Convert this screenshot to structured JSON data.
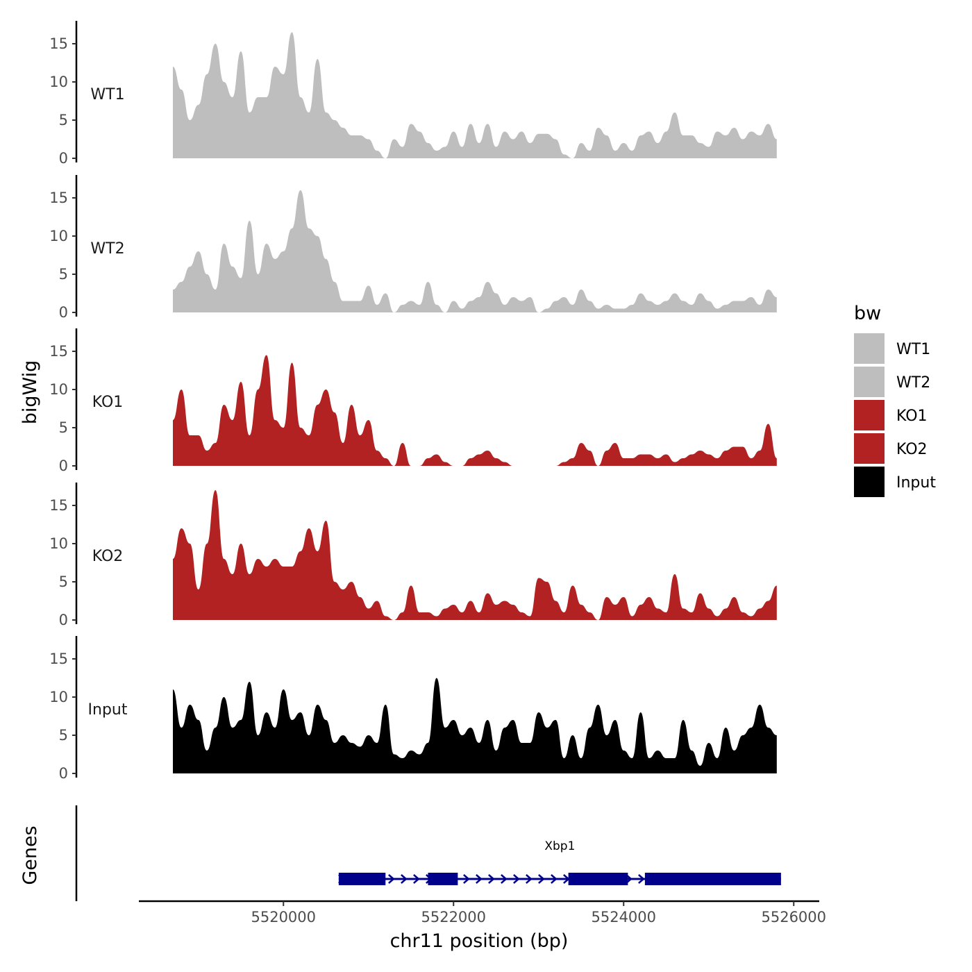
{
  "chart_data": {
    "type": "area",
    "xlabel": "chr11 position (bp)",
    "ylabel": "bigWig",
    "genes_label": "Genes",
    "xlim": [
      5518300,
      5526300
    ],
    "ylim": [
      0,
      18
    ],
    "x_ticks": [
      5520000,
      5522000,
      5524000,
      5526000
    ],
    "x_tick_labels": [
      "5520000",
      "5522000",
      "5524000",
      "5526000"
    ],
    "y_ticks": [
      0,
      5,
      10,
      15
    ],
    "y_tick_labels": [
      "0",
      "5",
      "10",
      "15"
    ],
    "legend": {
      "title": "bw",
      "entries": [
        {
          "label": "WT1",
          "color": "#bebebe"
        },
        {
          "label": "WT2",
          "color": "#bebebe"
        },
        {
          "label": "KO1",
          "color": "#b22222"
        },
        {
          "label": "KO2",
          "color": "#b22222"
        },
        {
          "label": "Input",
          "color": "#000000"
        }
      ]
    },
    "series": [
      {
        "name": "WT1",
        "color": "#bebebe",
        "x": [
          5518700,
          5518800,
          5518900,
          5519000,
          5519100,
          5519200,
          5519300,
          5519400,
          5519500,
          5519600,
          5519700,
          5519800,
          5519900,
          5520000,
          5520100,
          5520200,
          5520300,
          5520400,
          5520500,
          5520600,
          5520700,
          5520800,
          5520900,
          5521000,
          5521100,
          5521200,
          5521300,
          5521400,
          5521500,
          5521600,
          5521700,
          5521800,
          5521900,
          5522000,
          5522100,
          5522200,
          5522300,
          5522400,
          5522500,
          5522600,
          5522700,
          5522800,
          5522900,
          5523000,
          5523100,
          5523200,
          5523300,
          5523400,
          5523500,
          5523600,
          5523700,
          5523800,
          5523900,
          5524000,
          5524100,
          5524200,
          5524300,
          5524400,
          5524500,
          5524600,
          5524700,
          5524800,
          5524900,
          5525000,
          5525100,
          5525200,
          5525300,
          5525400,
          5525500,
          5525600,
          5525700,
          5525800
        ],
        "values": [
          12,
          9,
          5,
          7,
          11,
          15,
          10,
          8,
          14,
          6,
          8,
          8,
          12,
          11,
          16.5,
          8,
          6,
          13,
          6,
          5,
          4,
          3,
          3,
          2.5,
          1,
          0,
          2.5,
          1.5,
          4.5,
          3.5,
          2,
          1,
          1.5,
          3.5,
          1.5,
          4.5,
          2,
          4.5,
          1.5,
          3.5,
          2.5,
          3.5,
          2,
          3.2,
          3.2,
          2.5,
          0.5,
          0,
          2,
          1,
          4,
          3,
          1,
          2,
          1,
          3,
          3.5,
          2,
          3.5,
          6,
          3,
          3,
          2,
          1.5,
          3.5,
          3,
          4,
          2.5,
          3.5,
          3,
          4.5,
          2.5
        ]
      },
      {
        "name": "WT2",
        "color": "#bebebe",
        "x": [
          5518700,
          5518800,
          5518900,
          5519000,
          5519100,
          5519200,
          5519300,
          5519400,
          5519500,
          5519600,
          5519700,
          5519800,
          5519900,
          5520000,
          5520100,
          5520200,
          5520300,
          5520400,
          5520500,
          5520600,
          5520700,
          5520800,
          5520900,
          5521000,
          5521100,
          5521200,
          5521300,
          5521400,
          5521500,
          5521600,
          5521700,
          5521800,
          5521900,
          5522000,
          5522100,
          5522200,
          5522300,
          5522400,
          5522500,
          5522600,
          5522700,
          5522800,
          5522900,
          5523000,
          5523100,
          5523200,
          5523300,
          5523400,
          5523500,
          5523600,
          5523700,
          5523800,
          5523900,
          5524000,
          5524100,
          5524200,
          5524300,
          5524400,
          5524500,
          5524600,
          5524700,
          5524800,
          5524900,
          5525000,
          5525100,
          5525200,
          5525300,
          5525400,
          5525500,
          5525600,
          5525700,
          5525800
        ],
        "values": [
          3,
          4,
          6,
          8,
          5,
          3,
          9,
          6,
          4.5,
          12,
          5,
          9,
          7,
          8,
          11,
          16,
          11,
          10,
          7,
          4,
          1.5,
          1.5,
          1.5,
          3.5,
          1,
          2.5,
          0,
          1,
          1.5,
          1,
          4,
          1,
          0,
          1.5,
          0.5,
          1.5,
          2,
          4,
          2.5,
          1,
          2,
          1.5,
          2,
          0,
          0.5,
          1.5,
          2,
          1,
          3,
          1.5,
          0.5,
          1,
          0.5,
          0.5,
          1,
          2.5,
          1.5,
          1,
          1.5,
          2.5,
          1.5,
          1,
          2.5,
          1.5,
          0.5,
          1,
          1.5,
          1.5,
          2,
          1,
          3,
          2
        ]
      },
      {
        "name": "KO1",
        "color": "#b22222",
        "x": [
          5518700,
          5518800,
          5518900,
          5519000,
          5519100,
          5519200,
          5519300,
          5519400,
          5519500,
          5519600,
          5519700,
          5519800,
          5519900,
          5520000,
          5520100,
          5520200,
          5520300,
          5520400,
          5520500,
          5520600,
          5520700,
          5520800,
          5520900,
          5521000,
          5521100,
          5521200,
          5521300,
          5521400,
          5521500,
          5521600,
          5521700,
          5521800,
          5521900,
          5522000,
          5522100,
          5522200,
          5522300,
          5522400,
          5522500,
          5522600,
          5522700,
          5522800,
          5522900,
          5523000,
          5523100,
          5523200,
          5523300,
          5523400,
          5523500,
          5523600,
          5523700,
          5523800,
          5523900,
          5524000,
          5524100,
          5524200,
          5524300,
          5524400,
          5524500,
          5524600,
          5524700,
          5524800,
          5524900,
          5525000,
          5525100,
          5525200,
          5525300,
          5525400,
          5525500,
          5525600,
          5525700,
          5525800
        ],
        "values": [
          6,
          10,
          4,
          4,
          2,
          3,
          8,
          6,
          11,
          4,
          10,
          14.5,
          6,
          5,
          13.5,
          5,
          4,
          8,
          10,
          7,
          3,
          8,
          4,
          6,
          2,
          1,
          0,
          3,
          0,
          0,
          1,
          1.5,
          0.5,
          0,
          0,
          1,
          1.5,
          2,
          1,
          0.5,
          0,
          0,
          0,
          0,
          0,
          0,
          0.5,
          1,
          3,
          2,
          0,
          2,
          3,
          1,
          1,
          1.5,
          1.5,
          1,
          1.5,
          0.5,
          1,
          1.5,
          2,
          1.5,
          1,
          2,
          2.5,
          2.5,
          1,
          2,
          5.5,
          1
        ]
      },
      {
        "name": "KO2",
        "color": "#b22222",
        "x": [
          5518700,
          5518800,
          5518900,
          5519000,
          5519100,
          5519200,
          5519300,
          5519400,
          5519500,
          5519600,
          5519700,
          5519800,
          5519900,
          5520000,
          5520100,
          5520200,
          5520300,
          5520400,
          5520500,
          5520600,
          5520700,
          5520800,
          5520900,
          5521000,
          5521100,
          5521200,
          5521300,
          5521400,
          5521500,
          5521600,
          5521700,
          5521800,
          5521900,
          5522000,
          5522100,
          5522200,
          5522300,
          5522400,
          5522500,
          5522600,
          5522700,
          5522800,
          5522900,
          5523000,
          5523100,
          5523200,
          5523300,
          5523400,
          5523500,
          5523600,
          5523700,
          5523800,
          5523900,
          5524000,
          5524100,
          5524200,
          5524300,
          5524400,
          5524500,
          5524600,
          5524700,
          5524800,
          5524900,
          5525000,
          5525100,
          5525200,
          5525300,
          5525400,
          5525500,
          5525600,
          5525700,
          5525800
        ],
        "values": [
          8,
          12,
          10,
          4,
          10,
          17,
          8,
          6,
          10,
          6,
          8,
          7,
          8,
          7,
          7,
          9,
          12,
          9,
          13,
          5,
          4,
          5,
          3,
          1.5,
          2.5,
          0.5,
          0,
          1,
          4.5,
          1,
          1,
          0.5,
          1.5,
          2,
          1,
          2.5,
          1,
          3.5,
          2,
          2.5,
          2,
          1,
          0.5,
          5.5,
          5,
          2.5,
          1,
          4.5,
          2,
          1,
          0,
          3,
          2,
          3,
          0.5,
          2,
          3,
          1.5,
          1,
          6,
          1.5,
          1,
          3.5,
          1.5,
          0.5,
          1.5,
          3,
          1,
          0.5,
          1.5,
          2.5,
          4.5
        ]
      },
      {
        "name": "Input",
        "color": "#000000",
        "x": [
          5518700,
          5518800,
          5518900,
          5519000,
          5519100,
          5519200,
          5519300,
          5519400,
          5519500,
          5519600,
          5519700,
          5519800,
          5519900,
          5520000,
          5520100,
          5520200,
          5520300,
          5520400,
          5520500,
          5520600,
          5520700,
          5520800,
          5520900,
          5521000,
          5521100,
          5521200,
          5521300,
          5521400,
          5521500,
          5521600,
          5521700,
          5521800,
          5521900,
          5522000,
          5522100,
          5522200,
          5522300,
          5522400,
          5522500,
          5522600,
          5522700,
          5522800,
          5522900,
          5523000,
          5523100,
          5523200,
          5523300,
          5523400,
          5523500,
          5523600,
          5523700,
          5523800,
          5523900,
          5524000,
          5524100,
          5524200,
          5524300,
          5524400,
          5524500,
          5524600,
          5524700,
          5524800,
          5524900,
          5525000,
          5525100,
          5525200,
          5525300,
          5525400,
          5525500,
          5525600,
          5525700,
          5525800
        ],
        "values": [
          11,
          6,
          9,
          7,
          3,
          6,
          10,
          6,
          7,
          12,
          5,
          8,
          6,
          11,
          7,
          8,
          5,
          9,
          7,
          4,
          5,
          4,
          3.5,
          5,
          4,
          9,
          2.5,
          2,
          3,
          2.5,
          4,
          12.5,
          6,
          7,
          5,
          6,
          4,
          7,
          3,
          6,
          7,
          4,
          4,
          8,
          6,
          7,
          2,
          5,
          2,
          6,
          9,
          5,
          7,
          3,
          2,
          8,
          2,
          3,
          2,
          2,
          7,
          3,
          1,
          4,
          2,
          6,
          3,
          5,
          6,
          9,
          6,
          5
        ]
      }
    ],
    "genes": [
      {
        "name": "Xbp1",
        "start": 5520650,
        "end": 5525850,
        "color": "#00008b",
        "exons": [
          [
            5520650,
            5521200
          ],
          [
            5521700,
            5522050
          ],
          [
            5523350,
            5524050
          ],
          [
            5524250,
            5525850
          ]
        ]
      }
    ]
  }
}
